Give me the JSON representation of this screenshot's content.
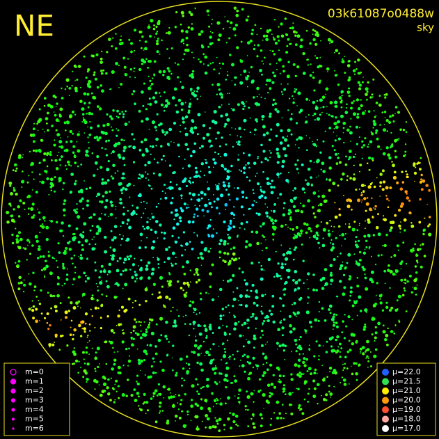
{
  "header": {
    "direction": "NE",
    "frame_id": "03k61087o0488w",
    "frame_type": "sky"
  },
  "magnitude_legend": {
    "color": "#ff00ff",
    "items": [
      "m=0",
      "m=1",
      "m=2",
      "m=3",
      "m=4",
      "m=5",
      "m=6"
    ]
  },
  "sky_legend": {
    "items": [
      {
        "label": "μ=22.0",
        "color": "#2060ff"
      },
      {
        "label": "μ=21.5",
        "color": "#30e050"
      },
      {
        "label": "μ=21.0",
        "color": "#ffee00"
      },
      {
        "label": "μ=20.0",
        "color": "#ff9a10"
      },
      {
        "label": "μ=19.0",
        "color": "#ff5030"
      },
      {
        "label": "μ=18.0",
        "color": "#ffaaa0"
      },
      {
        "label": "μ=17.0",
        "color": "#ffffff"
      }
    ]
  }
}
